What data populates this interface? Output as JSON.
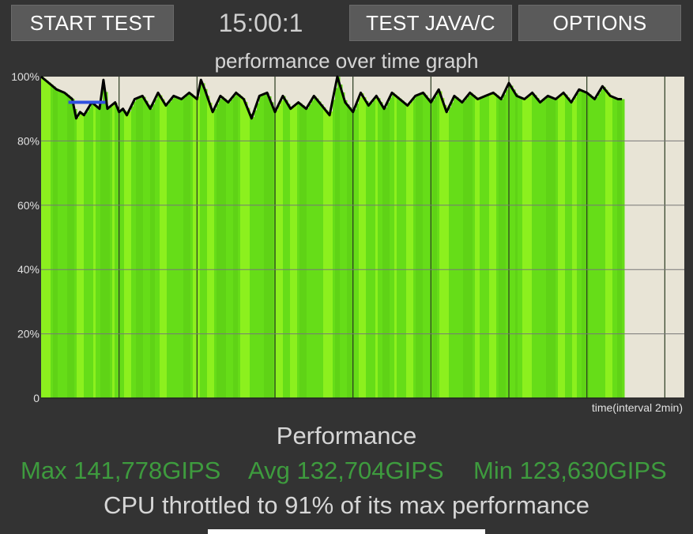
{
  "toolbar": {
    "start_label": "START TEST",
    "timer": "15:00:1",
    "java_label": "TEST JAVA/C",
    "options_label": "OPTIONS"
  },
  "graph": {
    "title": "performance over time graph"
  },
  "chart_data": {
    "type": "line",
    "title": "performance over time graph",
    "xlabel": "time(interval 2min)",
    "ylabel": "",
    "y_tick_labels": [
      "0",
      "20%",
      "40%",
      "60%",
      "80%",
      "100%"
    ],
    "y_ticks": [
      0,
      20,
      40,
      60,
      80,
      100
    ],
    "ylim": [
      0,
      100
    ],
    "xlim": [
      0,
      16.5
    ],
    "x_interval_min": 2,
    "grid": true,
    "colors": {
      "background": "#e8e4d6",
      "fill_bright": "#8cf01e",
      "fill_mid": "#66dd18",
      "line": "#000000",
      "marker": "#3050e0"
    },
    "series": [
      {
        "x": [
          0,
          0.2,
          0.4,
          0.6,
          0.8,
          0.9,
          1.0,
          1.1,
          1.3,
          1.5,
          1.6,
          1.7,
          1.8,
          1.9,
          2.0,
          2.1,
          2.2,
          2.4,
          2.6,
          2.8,
          3.0,
          3.2,
          3.4,
          3.6,
          3.8,
          4.0,
          4.1,
          4.2,
          4.4,
          4.6,
          4.8,
          5.0,
          5.2,
          5.4,
          5.6,
          5.8,
          6.0,
          6.2,
          6.4,
          6.6,
          6.8,
          7.0,
          7.2,
          7.4,
          7.6,
          7.8,
          8.0,
          8.2,
          8.4,
          8.6,
          8.8,
          9.0,
          9.2,
          9.4,
          9.6,
          9.8,
          10.0,
          10.2,
          10.4,
          10.6,
          10.8,
          11.0,
          11.2,
          11.4,
          11.6,
          11.8,
          12.0,
          12.2,
          12.4,
          12.6,
          12.8,
          13.0,
          13.2,
          13.4,
          13.6,
          13.8,
          14.0,
          14.2,
          14.4,
          14.6,
          14.8,
          14.9
        ],
        "values": [
          100,
          98,
          96,
          95,
          93,
          87,
          89,
          88,
          92,
          90,
          99,
          90,
          91,
          92,
          89,
          90,
          88,
          93,
          94,
          90,
          95,
          91,
          94,
          93,
          95,
          93,
          99,
          96,
          89,
          94,
          92,
          95,
          93,
          87,
          94,
          95,
          89,
          94,
          90,
          92,
          90,
          94,
          91,
          88,
          100,
          92,
          89,
          95,
          91,
          94,
          90,
          95,
          93,
          91,
          94,
          95,
          92,
          96,
          89,
          94,
          92,
          95,
          93,
          94,
          95,
          93,
          98,
          94,
          93,
          95,
          92,
          94,
          93,
          95,
          92,
          96,
          95,
          93,
          97,
          94,
          93,
          93
        ]
      }
    ],
    "marker": {
      "x": [
        0.7,
        1.65
      ],
      "value": 92
    }
  },
  "stats": {
    "title": "Performance",
    "max": "Max 141,778GIPS",
    "avg": "Avg 132,704GIPS",
    "min": "Min 123,630GIPS",
    "throttle": "CPU throttled to 91% of its max performance"
  }
}
